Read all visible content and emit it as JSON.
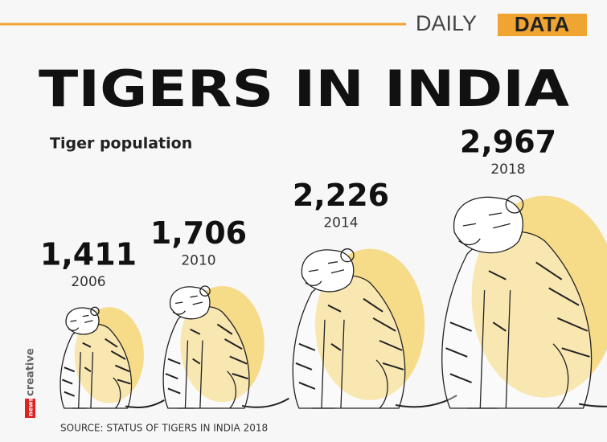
{
  "brand": {
    "daily": "DAILY",
    "data": "DATA"
  },
  "chart_data": {
    "type": "pictogram",
    "title": "TIGERS IN INDIA",
    "subtitle": "Tiger population",
    "categories": [
      "2006",
      "2010",
      "2014",
      "2018"
    ],
    "values": [
      1411,
      1706,
      2226,
      2967
    ],
    "value_labels": [
      "1,411",
      "1,706",
      "2,226",
      "2,967"
    ],
    "color": "#f6d676"
  },
  "source": "SOURCE: STATUS OF TIGERS IN INDIA 2018",
  "credit": {
    "news": "news",
    "creative": "creative"
  }
}
